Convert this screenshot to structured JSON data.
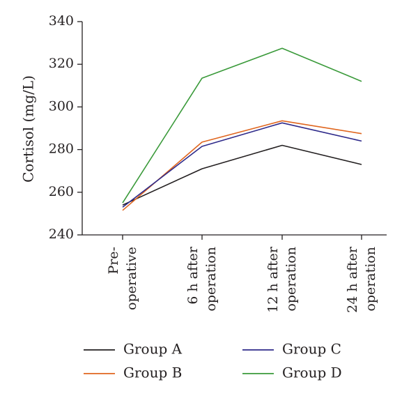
{
  "chart_data": {
    "type": "line",
    "title": "",
    "xlabel": "",
    "ylabel": "Cortisol (mg/L)",
    "ylim": [
      240,
      340
    ],
    "yticks": [
      240,
      260,
      280,
      300,
      320,
      340
    ],
    "grid": false,
    "legend_position": "bottom",
    "categories": [
      [
        "Pre-",
        "operative"
      ],
      [
        "6 h after",
        "operation"
      ],
      [
        "12 h after",
        "operation"
      ],
      [
        "24 h after",
        "operation"
      ]
    ],
    "series": [
      {
        "name": "Group A",
        "color": "#231f20",
        "values": [
          254,
          271,
          282,
          273
        ]
      },
      {
        "name": "Group B",
        "color": "#e0661f",
        "values": [
          251.5,
          283.5,
          293.5,
          287.5
        ]
      },
      {
        "name": "Group C",
        "color": "#2e2a8a",
        "values": [
          253,
          281.5,
          292.5,
          284
        ]
      },
      {
        "name": "Group D",
        "color": "#3a9a3a",
        "values": [
          255,
          313.5,
          327.5,
          312
        ]
      }
    ]
  }
}
